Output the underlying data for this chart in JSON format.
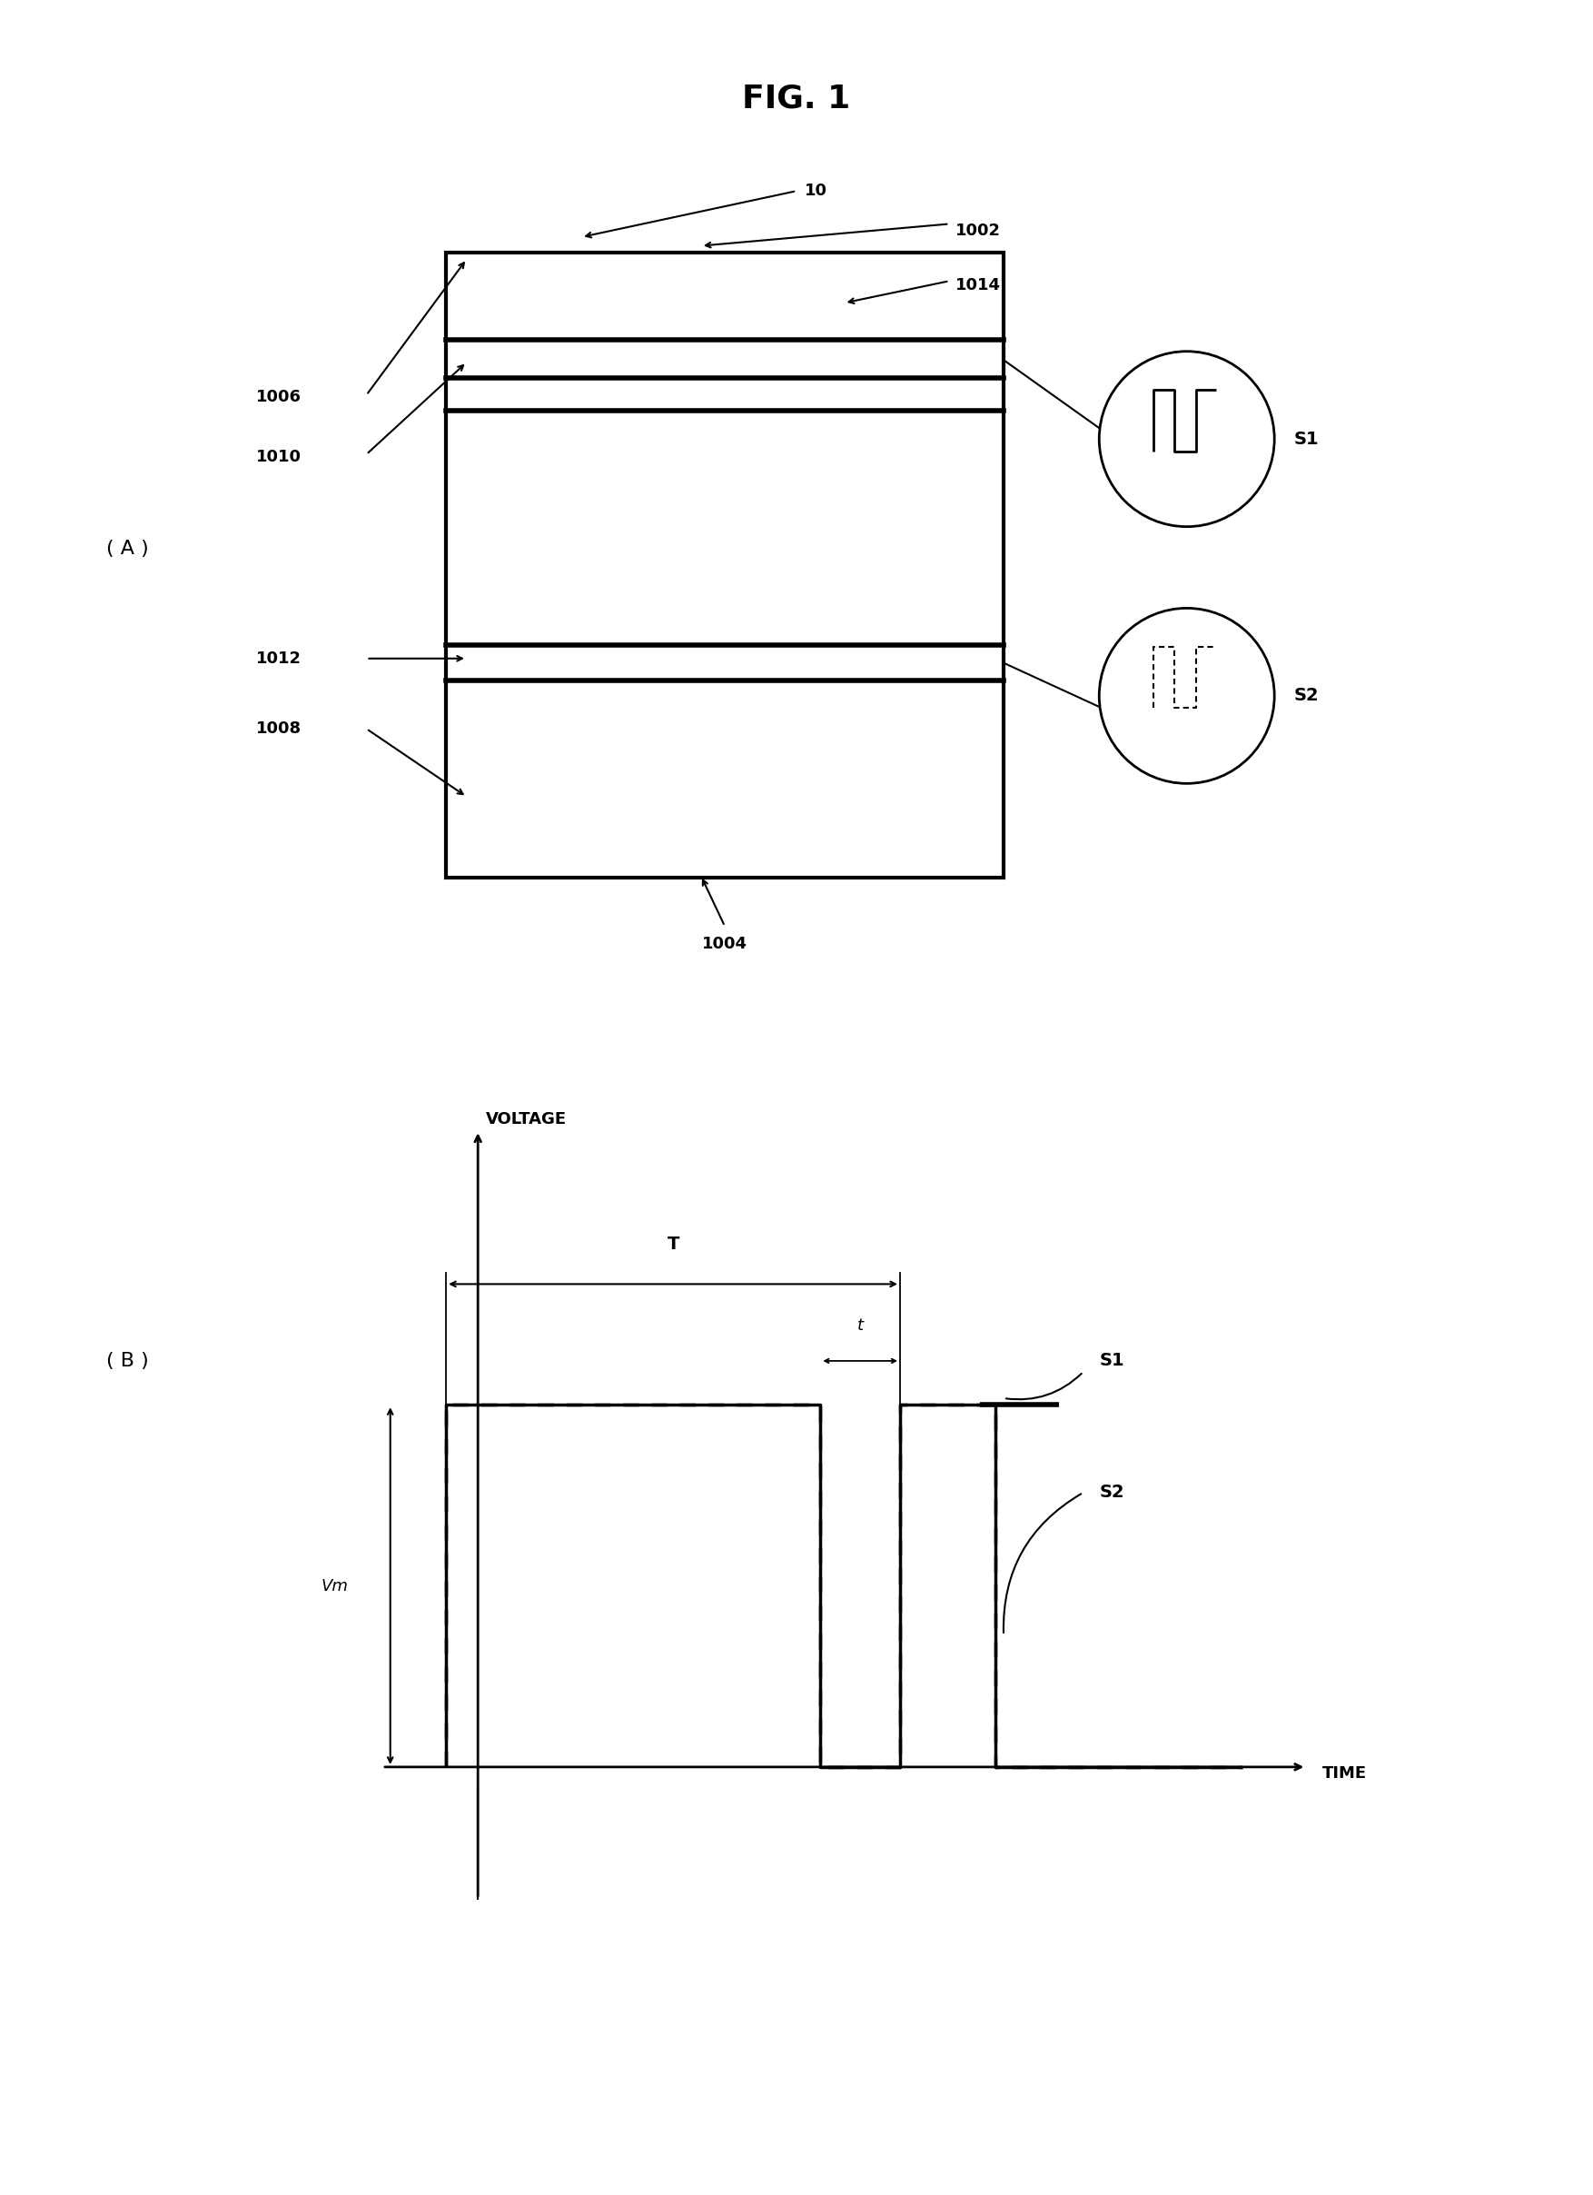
{
  "title": "FIG. 1",
  "background_color": "#ffffff",
  "fig_width": 17.54,
  "fig_height": 24.16,
  "panel_A_label": "( A )",
  "panel_B_label": "( B )",
  "S1_label": "S1",
  "S2_label": "S2",
  "volt_label": "VOLTAGE",
  "time_label": "TIME",
  "T_label": "T",
  "t_label": "t",
  "Vm_label": "Vm"
}
